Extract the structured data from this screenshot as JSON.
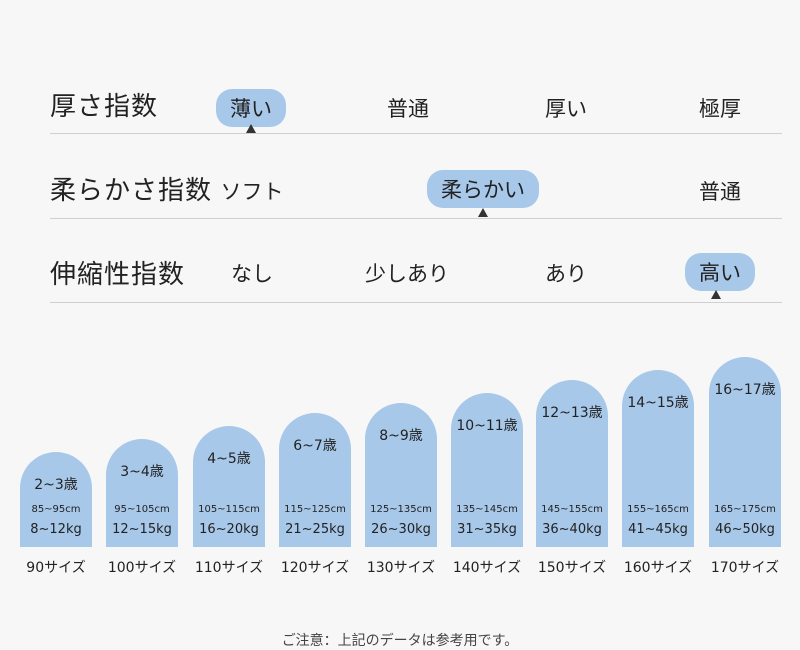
{
  "rows": [
    {
      "title": "厚さ指数",
      "options": [
        "薄い",
        "普通",
        "厚い",
        "極厚"
      ],
      "selected": 0
    },
    {
      "title": "柔らかさ指数",
      "options": [
        "ソフト",
        "柔らかい",
        "普通"
      ],
      "selected": 1
    },
    {
      "title": "伸縮性指数",
      "options": [
        "なし",
        "少しあり",
        "あり",
        "高い"
      ],
      "selected": 3
    }
  ],
  "sizes": [
    {
      "age": "2~3歳",
      "height": "85~95cm",
      "weight": "8~12kg",
      "label": "90サイズ"
    },
    {
      "age": "3~4歳",
      "height": "95~105cm",
      "weight": "12~15kg",
      "label": "100サイズ"
    },
    {
      "age": "4~5歳",
      "height": "105~115cm",
      "weight": "16~20kg",
      "label": "110サイズ"
    },
    {
      "age": "6~7歳",
      "height": "115~125cm",
      "weight": "21~25kg",
      "label": "120サイズ"
    },
    {
      "age": "8~9歳",
      "height": "125~135cm",
      "weight": "26~30kg",
      "label": "130サイズ"
    },
    {
      "age": "10~11歳",
      "height": "135~145cm",
      "weight": "31~35kg",
      "label": "140サイズ"
    },
    {
      "age": "12~13歳",
      "height": "145~155cm",
      "weight": "36~40kg",
      "label": "150サイズ"
    },
    {
      "age": "14~15歳",
      "height": "155~165cm",
      "weight": "41~45kg",
      "label": "160サイズ"
    },
    {
      "age": "16~17歳",
      "height": "165~175cm",
      "weight": "46~50kg",
      "label": "170サイズ"
    }
  ],
  "note": "ご注意：上記のデータは参考用です。",
  "colors": {
    "accent": "#a8c8ea",
    "divider": "#cfcfd2",
    "background": "#f7f7f8"
  }
}
